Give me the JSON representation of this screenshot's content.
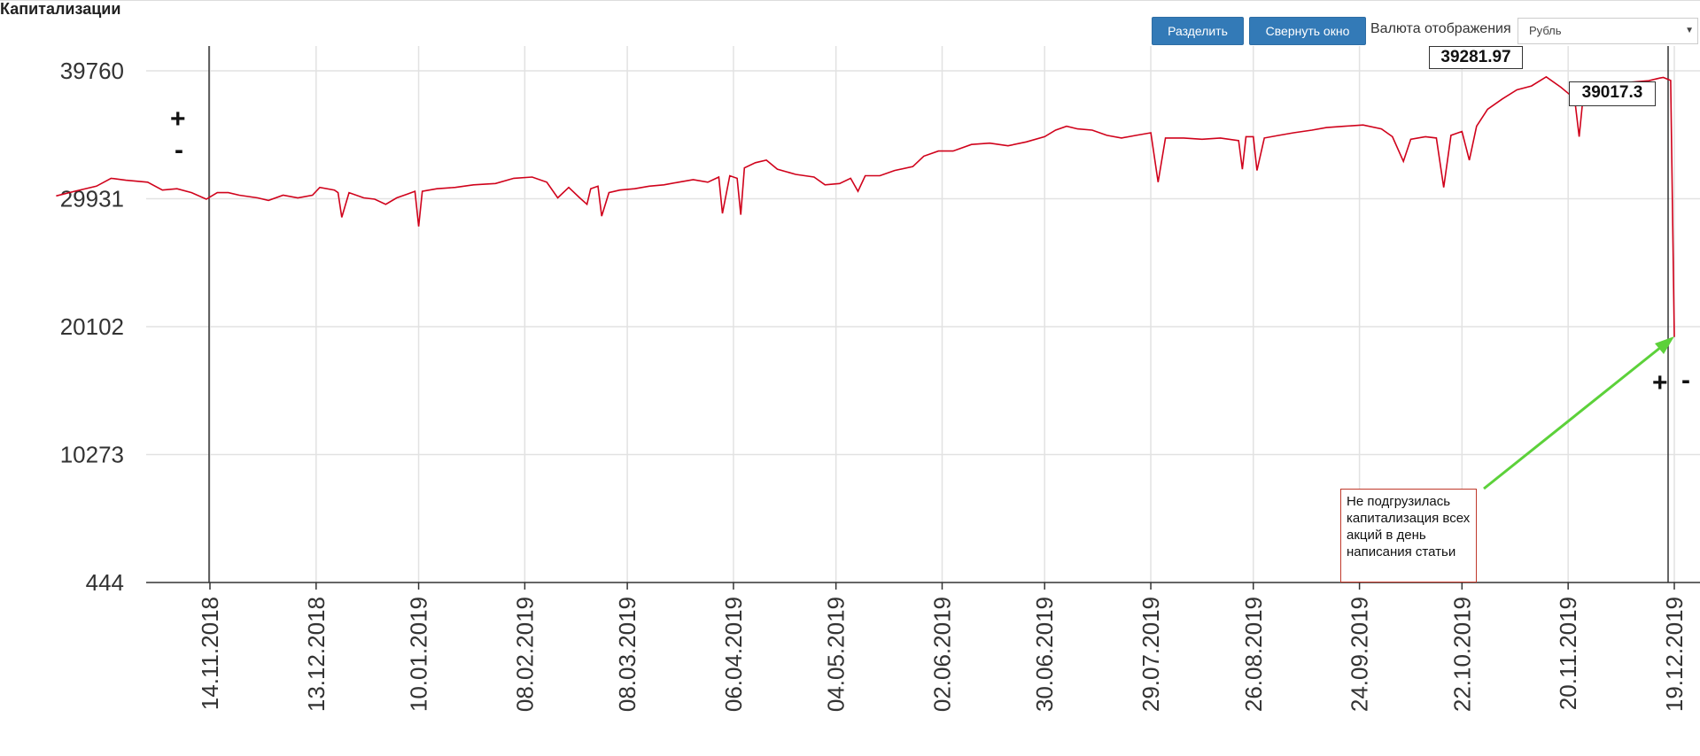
{
  "header": {
    "title": "Капитализации"
  },
  "toolbar": {
    "split_label": "Разделить",
    "collapse_label": "Свернуть окно",
    "currency_label": "Валюта отображения",
    "currency_value": "Рубль"
  },
  "controls": {
    "plus": "+",
    "minus": "-"
  },
  "callouts": {
    "max_value": "39281.97",
    "last_value": "39017.3",
    "note": "Не подгрузилась капитализация всех акций в день написания статьи"
  },
  "colors": {
    "line": "#d0021b",
    "arrow": "#5cd13a",
    "button": "#337ab7"
  },
  "chart_data": {
    "type": "line",
    "title": "",
    "xlabel": "",
    "ylabel": "",
    "y_ticks": [
      39760,
      29931,
      20102,
      10273,
      444
    ],
    "ylim": [
      444,
      39760
    ],
    "x_ticks": [
      "14.11.2018",
      "13.12.2018",
      "10.01.2019",
      "08.02.2019",
      "08.03.2019",
      "06.04.2019",
      "04.05.2019",
      "02.06.2019",
      "30.06.2019",
      "29.07.2019",
      "26.08.2019",
      "24.09.2019",
      "22.10.2019",
      "20.11.2019",
      "19.12.2019"
    ],
    "grid": true,
    "series": [
      {
        "points": [
          [
            "2018-10-03",
            30150
          ],
          [
            "2018-10-08",
            30500
          ],
          [
            "2018-10-14",
            30900
          ],
          [
            "2018-10-18",
            31500
          ],
          [
            "2018-10-22",
            31350
          ],
          [
            "2018-10-28",
            31200
          ],
          [
            "2018-11-01",
            30600
          ],
          [
            "2018-11-05",
            30700
          ],
          [
            "2018-11-09",
            30400
          ],
          [
            "2018-11-13",
            29900
          ],
          [
            "2018-11-16",
            30400
          ],
          [
            "2018-11-19",
            30400
          ],
          [
            "2018-11-22",
            30200
          ],
          [
            "2018-11-27",
            30000
          ],
          [
            "2018-11-30",
            29800
          ],
          [
            "2018-12-04",
            30200
          ],
          [
            "2018-12-08",
            30000
          ],
          [
            "2018-12-12",
            30200
          ],
          [
            "2018-12-14",
            30800
          ],
          [
            "2018-12-18",
            30600
          ],
          [
            "2018-12-19",
            30400
          ],
          [
            "2018-12-20",
            28500
          ],
          [
            "2018-12-22",
            30400
          ],
          [
            "2018-12-26",
            30000
          ],
          [
            "2018-12-29",
            29900
          ],
          [
            "2019-01-01",
            29500
          ],
          [
            "2019-01-04",
            30000
          ],
          [
            "2019-01-07",
            30300
          ],
          [
            "2019-01-09",
            30500
          ],
          [
            "2019-01-10",
            27800
          ],
          [
            "2019-01-11",
            30500
          ],
          [
            "2019-01-15",
            30700
          ],
          [
            "2019-01-20",
            30800
          ],
          [
            "2019-01-25",
            31000
          ],
          [
            "2019-01-31",
            31100
          ],
          [
            "2019-02-05",
            31500
          ],
          [
            "2019-02-10",
            31600
          ],
          [
            "2019-02-14",
            31200
          ],
          [
            "2019-02-17",
            30000
          ],
          [
            "2019-02-20",
            30800
          ],
          [
            "2019-02-23",
            30000
          ],
          [
            "2019-02-25",
            29500
          ],
          [
            "2019-02-26",
            30700
          ],
          [
            "2019-02-28",
            30900
          ],
          [
            "2019-03-01",
            28600
          ],
          [
            "2019-03-03",
            30400
          ],
          [
            "2019-03-06",
            30600
          ],
          [
            "2019-03-10",
            30700
          ],
          [
            "2019-03-14",
            30900
          ],
          [
            "2019-03-18",
            31000
          ],
          [
            "2019-03-22",
            31200
          ],
          [
            "2019-03-26",
            31400
          ],
          [
            "2019-03-30",
            31200
          ],
          [
            "2019-04-02",
            31600
          ],
          [
            "2019-04-03",
            28800
          ],
          [
            "2019-04-05",
            31700
          ],
          [
            "2019-04-07",
            31500
          ],
          [
            "2019-04-08",
            28700
          ],
          [
            "2019-04-09",
            32300
          ],
          [
            "2019-04-12",
            32700
          ],
          [
            "2019-04-15",
            32900
          ],
          [
            "2019-04-18",
            32200
          ],
          [
            "2019-04-23",
            31800
          ],
          [
            "2019-04-28",
            31600
          ],
          [
            "2019-05-01",
            31000
          ],
          [
            "2019-05-05",
            31100
          ],
          [
            "2019-05-08",
            31500
          ],
          [
            "2019-05-10",
            30500
          ],
          [
            "2019-05-12",
            31700
          ],
          [
            "2019-05-16",
            31700
          ],
          [
            "2019-05-20",
            32100
          ],
          [
            "2019-05-25",
            32400
          ],
          [
            "2019-05-28",
            33200
          ],
          [
            "2019-06-01",
            33600
          ],
          [
            "2019-06-05",
            33600
          ],
          [
            "2019-06-10",
            34100
          ],
          [
            "2019-06-15",
            34200
          ],
          [
            "2019-06-20",
            34000
          ],
          [
            "2019-06-25",
            34300
          ],
          [
            "2019-06-30",
            34700
          ],
          [
            "2019-07-03",
            35200
          ],
          [
            "2019-07-06",
            35500
          ],
          [
            "2019-07-09",
            35300
          ],
          [
            "2019-07-13",
            35200
          ],
          [
            "2019-07-17",
            34800
          ],
          [
            "2019-07-21",
            34600
          ],
          [
            "2019-07-25",
            34800
          ],
          [
            "2019-07-29",
            35000
          ],
          [
            "2019-07-31",
            31200
          ],
          [
            "2019-08-02",
            34600
          ],
          [
            "2019-08-07",
            34600
          ],
          [
            "2019-08-12",
            34500
          ],
          [
            "2019-08-17",
            34600
          ],
          [
            "2019-08-22",
            34400
          ],
          [
            "2019-08-23",
            32200
          ],
          [
            "2019-08-24",
            34700
          ],
          [
            "2019-08-26",
            34700
          ],
          [
            "2019-08-27",
            32100
          ],
          [
            "2019-08-29",
            34600
          ],
          [
            "2019-09-02",
            34800
          ],
          [
            "2019-09-06",
            35000
          ],
          [
            "2019-09-11",
            35200
          ],
          [
            "2019-09-15",
            35400
          ],
          [
            "2019-09-20",
            35500
          ],
          [
            "2019-09-25",
            35600
          ],
          [
            "2019-09-30",
            35300
          ],
          [
            "2019-10-03",
            34700
          ],
          [
            "2019-10-06",
            32800
          ],
          [
            "2019-10-08",
            34500
          ],
          [
            "2019-10-12",
            34700
          ],
          [
            "2019-10-15",
            34600
          ],
          [
            "2019-10-17",
            30800
          ],
          [
            "2019-10-19",
            34800
          ],
          [
            "2019-10-22",
            35100
          ],
          [
            "2019-10-24",
            32900
          ],
          [
            "2019-10-26",
            35500
          ],
          [
            "2019-10-29",
            36800
          ],
          [
            "2019-11-02",
            37600
          ],
          [
            "2019-11-06",
            38300
          ],
          [
            "2019-11-10",
            38600
          ],
          [
            "2019-11-14",
            39300
          ],
          [
            "2019-11-18",
            38500
          ],
          [
            "2019-11-21",
            37800
          ],
          [
            "2019-11-22",
            37100
          ],
          [
            "2019-11-23",
            34700
          ],
          [
            "2019-11-24",
            37500
          ],
          [
            "2019-11-28",
            38600
          ],
          [
            "2019-12-03",
            38800
          ],
          [
            "2019-12-08",
            38900
          ],
          [
            "2019-12-12",
            39000
          ],
          [
            "2019-12-15",
            39200
          ],
          [
            "2019-12-16",
            39250
          ],
          [
            "2019-12-18",
            39017.3
          ],
          [
            "2019-12-19",
            19300
          ]
        ]
      }
    ]
  }
}
